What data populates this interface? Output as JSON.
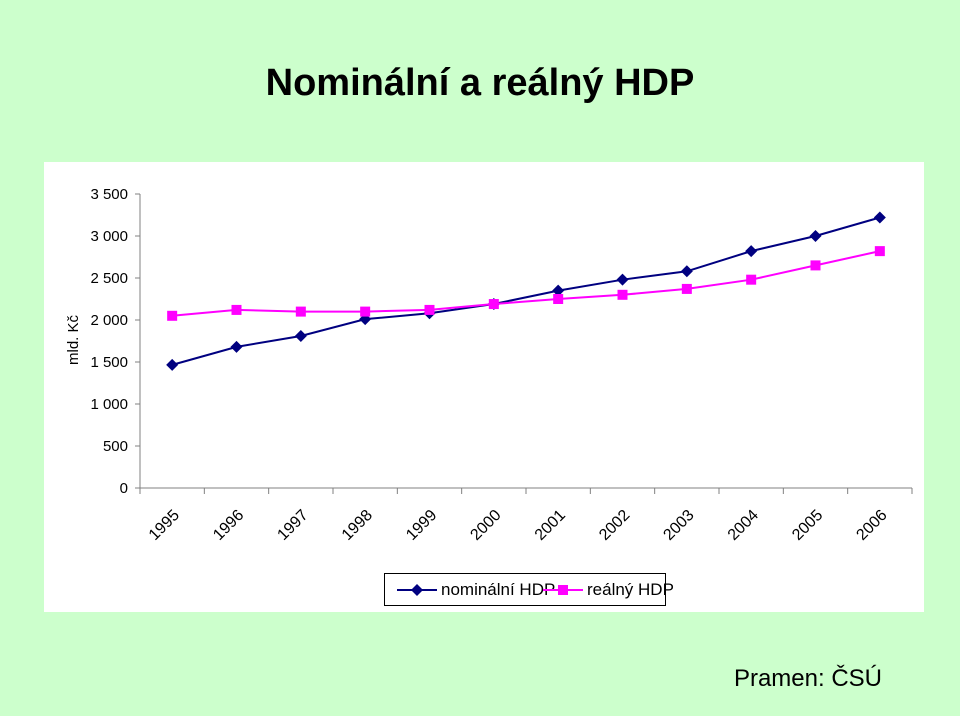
{
  "title": "Nominální a reálný HDP",
  "source": "Pramen: ČSÚ",
  "colors": {
    "background": "#ccffcc",
    "plot": "#ffffff",
    "nominal": "#000080",
    "real": "#ff00ff"
  },
  "chart_data": {
    "type": "line",
    "title": "",
    "xlabel": "",
    "ylabel": "mld. Kč",
    "ylim": [
      0,
      3500
    ],
    "yticks": [
      0,
      500,
      1000,
      1500,
      2000,
      2500,
      3000,
      3500
    ],
    "ytick_labels": [
      "0",
      "500",
      "1 000",
      "1 500",
      "2 000",
      "2 500",
      "3 000",
      "3 500"
    ],
    "categories": [
      "1995",
      "1996",
      "1997",
      "1998",
      "1999",
      "2000",
      "2001",
      "2002",
      "2003",
      "2004",
      "2005",
      "2006"
    ],
    "grid": false,
    "legend_position": "bottom",
    "series": [
      {
        "name": "nominální HDP",
        "marker": "diamond",
        "color": "#000080",
        "values": [
          1466,
          1680,
          1810,
          2010,
          2080,
          2190,
          2350,
          2480,
          2580,
          2820,
          3000,
          3220
        ]
      },
      {
        "name": "reálný HDP",
        "marker": "square",
        "color": "#ff00ff",
        "values": [
          2050,
          2120,
          2100,
          2100,
          2120,
          2190,
          2250,
          2300,
          2370,
          2480,
          2650,
          2820
        ]
      }
    ]
  }
}
